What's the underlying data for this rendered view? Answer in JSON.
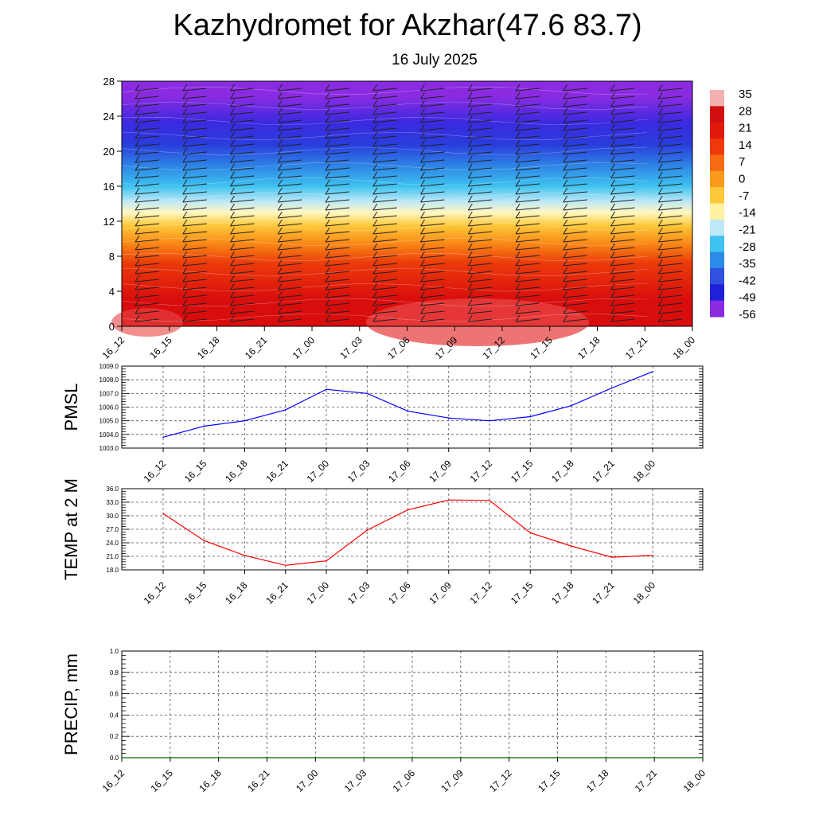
{
  "header": {
    "title": "Kazhydromet for Akzhar(47.6 83.7)",
    "date": "16 July 2025"
  },
  "chart_data": [
    {
      "type": "heatmap",
      "name": "cross-section",
      "x": [
        "16_12",
        "16_15",
        "16_18",
        "16_21",
        "17_00",
        "17_03",
        "17_06",
        "17_09",
        "17_12",
        "17_15",
        "17_18",
        "17_21",
        "18_00"
      ],
      "ylim": [
        0,
        28
      ],
      "yticks": [
        "0",
        "4",
        "8",
        "12",
        "16",
        "20",
        "24",
        "28"
      ],
      "colorbar": {
        "labels": [
          "35",
          "28",
          "21",
          "14",
          "7",
          "0",
          "-7",
          "-14",
          "-21",
          "-28",
          "-35",
          "-42",
          "-49",
          "-56"
        ],
        "colors_top_to_bottom": [
          "#f4b0b0",
          "#d01010",
          "#e01a0a",
          "#ee3a0a",
          "#f56a12",
          "#fa9a1c",
          "#fdc83a",
          "#fff2a0",
          "#bfe8f7",
          "#3ec3f0",
          "#2b8ce8",
          "#3050e0",
          "#2020d8",
          "#8a2be2"
        ]
      },
      "bands_bottom_to_top": [
        {
          "y": [
            0,
            6
          ],
          "color": "#d90d0d"
        },
        {
          "y": [
            6,
            8.5
          ],
          "color": "#ec3b0b"
        },
        {
          "y": [
            8.5,
            10.5
          ],
          "color": "#fa8a17"
        },
        {
          "y": [
            10.5,
            12.5
          ],
          "color": "#fdc83a"
        },
        {
          "y": [
            12.5,
            13.5
          ],
          "color": "#fff7c0"
        },
        {
          "y": [
            13.5,
            15
          ],
          "color": "#bfe8f7"
        },
        {
          "y": [
            15,
            17
          ],
          "color": "#3ec3f0"
        },
        {
          "y": [
            17,
            19.5
          ],
          "color": "#2e86e6"
        },
        {
          "y": [
            19.5,
            22
          ],
          "color": "#2a3ddc"
        },
        {
          "y": [
            22,
            24.5
          ],
          "color": "#3a2ae0"
        },
        {
          "y": [
            24.5,
            28
          ],
          "color": "#8a2be2"
        }
      ]
    },
    {
      "type": "line",
      "name": "pmsl",
      "ylabel": "PMSL",
      "x": [
        "16_12",
        "16_15",
        "16_18",
        "16_21",
        "17_00",
        "17_03",
        "17_06",
        "17_09",
        "17_12",
        "17_15",
        "17_18",
        "17_21",
        "18_00"
      ],
      "series": [
        {
          "color": "#0000ff",
          "values": [
            1003.8,
            1004.6,
            1005.0,
            1005.8,
            1007.3,
            1007.0,
            1005.7,
            1005.2,
            1005.0,
            1005.3,
            1006.1,
            1007.4,
            1008.6
          ]
        }
      ],
      "ylim": [
        1003.0,
        1009.0
      ],
      "yticks": [
        "1003.0",
        "1004.0",
        "1005.0",
        "1006.0",
        "1007.0",
        "1008.0",
        "1009.0"
      ]
    },
    {
      "type": "line",
      "name": "temp",
      "ylabel": "TEMP at 2 M",
      "x": [
        "16_12",
        "16_15",
        "16_18",
        "16_21",
        "17_00",
        "17_03",
        "17_06",
        "17_09",
        "17_12",
        "17_15",
        "17_18",
        "17_21",
        "18_00"
      ],
      "series": [
        {
          "color": "#ff0000",
          "values": [
            30.5,
            24.5,
            21.2,
            19.0,
            20.0,
            26.8,
            31.3,
            33.5,
            33.4,
            26.2,
            23.3,
            20.8,
            21.2
          ]
        }
      ],
      "ylim": [
        18.0,
        36.0
      ],
      "yticks": [
        "18.0",
        "21.0",
        "24.0",
        "27.0",
        "30.0",
        "33.0",
        "36.0"
      ]
    },
    {
      "type": "line",
      "name": "precip",
      "ylabel": "PRECIP, mm",
      "x": [
        "16_12",
        "16_15",
        "16_18",
        "16_21",
        "17_00",
        "17_03",
        "17_06",
        "17_09",
        "17_12",
        "17_15",
        "17_18",
        "17_21",
        "18_00"
      ],
      "series": [
        {
          "color": "#006400",
          "values": [
            0,
            0,
            0,
            0,
            0,
            0,
            0,
            0,
            0,
            0,
            0,
            0,
            0
          ]
        }
      ],
      "ylim": [
        0.0,
        1.0
      ],
      "yticks": [
        "0.0",
        "0.2",
        "0.4",
        "0.6",
        "0.8",
        "1.0"
      ]
    }
  ]
}
